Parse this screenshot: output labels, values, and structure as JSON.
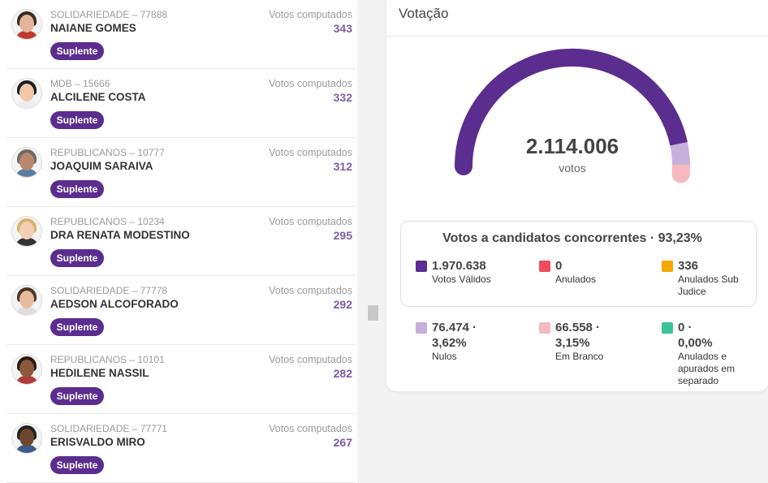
{
  "candidates": [
    {
      "party": "SOLIDARIEDADE – 77888",
      "name": "NAIANE GOMES",
      "badge": "Suplente",
      "votes_label": "Votos computados",
      "votes": 343
    },
    {
      "party": "MDB – 15666",
      "name": "ALCILENE COSTA",
      "badge": "Suplente",
      "votes_label": "Votos computados",
      "votes": 332
    },
    {
      "party": "REPUBLICANOS – 10777",
      "name": "JOAQUIM SARAIVA",
      "badge": "Suplente",
      "votes_label": "Votos computados",
      "votes": 312
    },
    {
      "party": "REPUBLICANOS – 10234",
      "name": "DRA RENATA MODESTINO",
      "badge": "Suplente",
      "votes_label": "Votos computados",
      "votes": 295
    },
    {
      "party": "SOLIDARIEDADE – 77778",
      "name": "AEDSON ALCOFORADO",
      "badge": "Suplente",
      "votes_label": "Votos computados",
      "votes": 292
    },
    {
      "party": "REPUBLICANOS – 10101",
      "name": "HEDILENE NASSIL",
      "badge": "Suplente",
      "votes_label": "Votos computados",
      "votes": 282
    },
    {
      "party": "SOLIDARIEDADE – 77771",
      "name": "ERISVALDO MIRO",
      "badge": "Suplente",
      "votes_label": "Votos computados",
      "votes": 267
    }
  ],
  "panel": {
    "title": "Votação",
    "total": "2.114.006",
    "total_label": "votos",
    "summary_title": "Votos a candidatos concorrentes · 93,23%",
    "main_stats": [
      {
        "value": "1.970.638",
        "label": "Votos Válidos",
        "color": "#5b2d8e"
      },
      {
        "value": "0",
        "label": "Anulados",
        "color": "#ef4b5e"
      },
      {
        "value": "336",
        "label": "Anulados Sub Judice",
        "color": "#f4a800"
      }
    ],
    "extra_stats": [
      {
        "value": "76.474 · 3,62%",
        "label": "Nulos",
        "color": "#c9b0dc"
      },
      {
        "value": "66.558 · 3,15%",
        "label": "Em Branco",
        "color": "#f7b8c0"
      },
      {
        "value": "0 · 0,00%",
        "label": "Anulados e apurados em separado",
        "color": "#3cc39a"
      }
    ]
  }
}
